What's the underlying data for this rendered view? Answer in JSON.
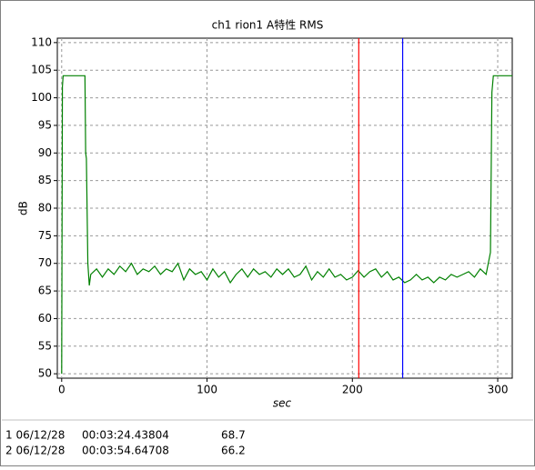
{
  "chart_data": {
    "type": "line",
    "title": "ch1 rion1 A特性 RMS",
    "x_label": "sec",
    "y_label": "dB",
    "xlim": [
      -3,
      310
    ],
    "ylim": [
      49.2,
      110.8
    ],
    "xticks": [
      0,
      100,
      200,
      300
    ],
    "yticks": [
      50,
      55,
      60,
      65,
      70,
      75,
      80,
      85,
      90,
      95,
      100,
      105,
      110
    ],
    "grid": true,
    "series": [
      {
        "color": "#008000",
        "x": [
          0,
          0.5,
          1,
          16,
          16.5,
          17,
          18,
          19,
          20,
          24,
          28,
          32,
          36,
          40,
          44,
          48,
          52,
          56,
          60,
          64,
          68,
          72,
          76,
          80,
          84,
          88,
          92,
          96,
          100,
          104,
          108,
          112,
          116,
          120,
          124,
          128,
          132,
          136,
          140,
          144,
          148,
          152,
          156,
          160,
          164,
          168,
          172,
          176,
          180,
          184,
          188,
          192,
          196,
          200,
          204,
          208,
          212,
          216,
          220,
          224,
          228,
          232,
          236,
          240,
          244,
          248,
          252,
          256,
          260,
          264,
          268,
          272,
          276,
          280,
          284,
          288,
          292,
          295,
          296,
          297,
          310
        ],
        "values": [
          50,
          102,
          104,
          104,
          90,
          89,
          70,
          66,
          68,
          69,
          67.5,
          69,
          68,
          69.5,
          68.5,
          70,
          68,
          69,
          68.5,
          69.5,
          68,
          69,
          68.5,
          70,
          67,
          69,
          68,
          68.5,
          67,
          69,
          67.5,
          68.5,
          66.5,
          68,
          69,
          67.5,
          69,
          68,
          68.5,
          67.5,
          69,
          68,
          69,
          67.5,
          68,
          69.5,
          67,
          68.5,
          67.5,
          69,
          67.5,
          68,
          67,
          67.5,
          68.7,
          67.5,
          68.5,
          69,
          67.5,
          68.5,
          67,
          67.5,
          66.5,
          67,
          68,
          67,
          67.5,
          66.5,
          67.5,
          67,
          68,
          67.5,
          68,
          68.5,
          67.5,
          69,
          68,
          72,
          101,
          104,
          104
        ]
      }
    ],
    "cursors": [
      {
        "x": 204.4,
        "color": "#ff0000"
      },
      {
        "x": 234.6,
        "color": "#0000ff"
      }
    ]
  },
  "readings": [
    [
      "1 06/12/28",
      "00:03:24.43804",
      "68.7"
    ],
    [
      "2 06/12/28",
      "00:03:54.64708",
      "66.2"
    ]
  ]
}
